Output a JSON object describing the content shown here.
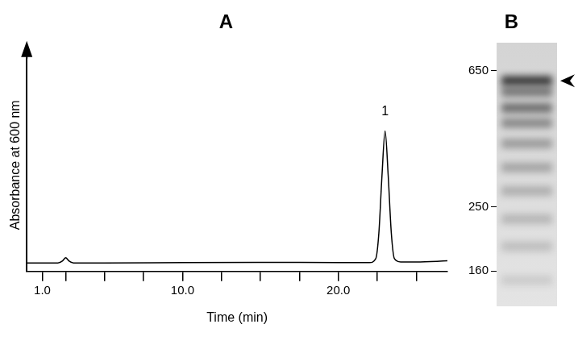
{
  "chart_data": [
    {
      "type": "line",
      "title": "A",
      "x_label": "Time (min)",
      "y_label": "Absorbance at 600 nm",
      "x": [
        0,
        2.0,
        2.3,
        2.5,
        2.7,
        3.0,
        5,
        10,
        15,
        20,
        22.0,
        22.4,
        22.6,
        22.8,
        23.0,
        23.2,
        23.4,
        23.6,
        24.0,
        25,
        27
      ],
      "values": [
        0.04,
        0.04,
        0.05,
        0.065,
        0.05,
        0.04,
        0.04,
        0.042,
        0.043,
        0.042,
        0.042,
        0.06,
        0.18,
        0.45,
        0.66,
        0.45,
        0.18,
        0.06,
        0.045,
        0.045,
        0.05
      ],
      "color": "#000000",
      "xlim": [
        0,
        27
      ],
      "xticks": [
        {
          "value": 1,
          "label": "1.0"
        },
        {
          "value": 10,
          "label": "10.0"
        },
        {
          "value": 20,
          "label": "20.0"
        }
      ],
      "minor_xticks": [
        2.5,
        5,
        7.5,
        12.5,
        15,
        17.5,
        22.5,
        25
      ],
      "ylim": [
        0,
        1
      ],
      "tick_labels": "x",
      "grid": false,
      "annotations": [
        {
          "text": "1",
          "x": 23.0,
          "y": 0.72
        }
      ]
    },
    {
      "type": "gel",
      "title": "B",
      "log": "y",
      "ylim": [
        125,
        790
      ],
      "yticks": [
        650,
        250,
        160
      ],
      "bands": [
        {
          "value": 605,
          "intensity": 0.9
        },
        {
          "value": 560,
          "intensity": 0.55
        },
        {
          "value": 500,
          "intensity": 0.6
        },
        {
          "value": 450,
          "intensity": 0.45
        },
        {
          "value": 390,
          "intensity": 0.35
        },
        {
          "value": 330,
          "intensity": 0.3
        },
        {
          "value": 280,
          "intensity": 0.25
        },
        {
          "value": 230,
          "intensity": 0.22
        },
        {
          "value": 190,
          "intensity": 0.18
        },
        {
          "value": 150,
          "intensity": 0.12
        }
      ],
      "arrow": 605,
      "grid": false
    }
  ]
}
